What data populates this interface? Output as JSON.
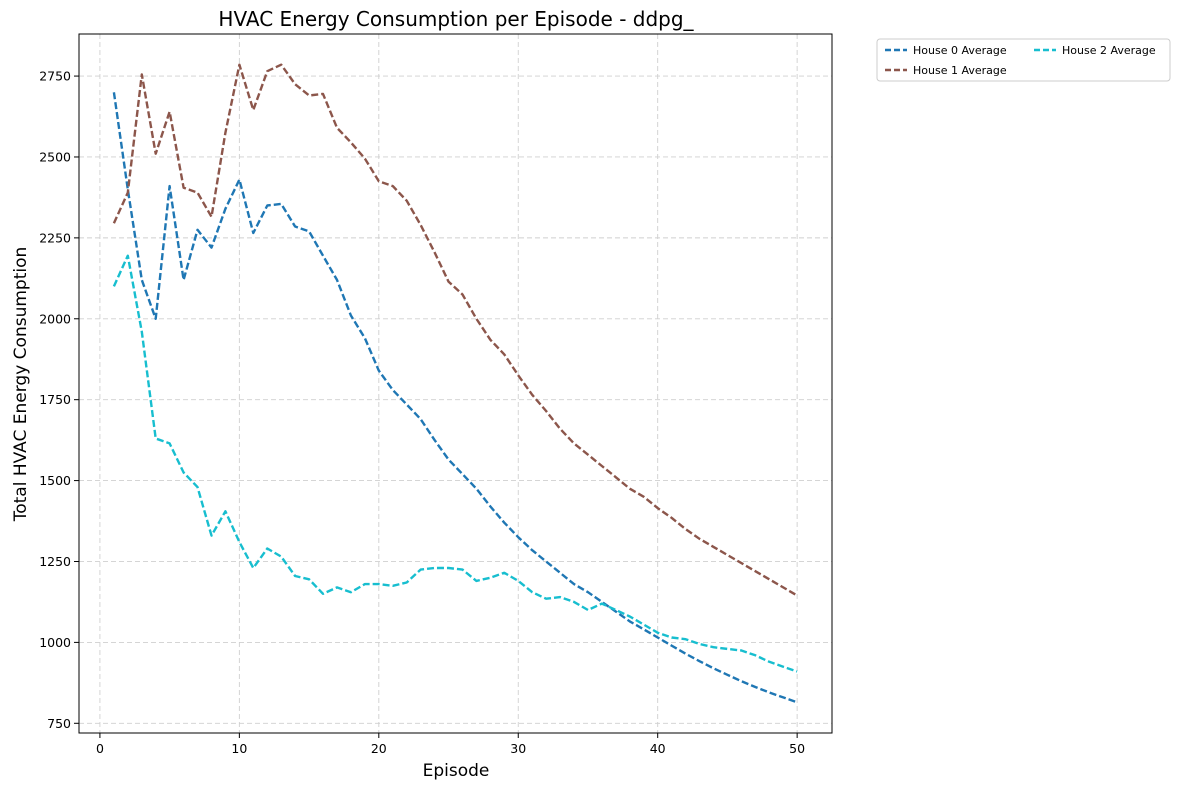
{
  "chart_data": {
    "type": "line",
    "title": "HVAC Energy Consumption per Episode - ddpg_",
    "xlabel": "Episode",
    "ylabel": "Total HVAC Energy Consumption",
    "xlim": [
      -1.5,
      52.5
    ],
    "ylim": [
      720,
      2880
    ],
    "xticks": [
      0,
      10,
      20,
      30,
      40,
      50
    ],
    "yticks": [
      750,
      1000,
      1250,
      1500,
      1750,
      2000,
      2250,
      2500,
      2750
    ],
    "grid": true,
    "legend_position": "outside-top-right",
    "x": [
      1,
      2,
      3,
      4,
      5,
      6,
      7,
      8,
      9,
      10,
      11,
      12,
      13,
      14,
      15,
      16,
      17,
      18,
      19,
      20,
      21,
      22,
      23,
      24,
      25,
      26,
      27,
      28,
      29,
      30,
      31,
      32,
      33,
      34,
      35,
      36,
      37,
      38,
      39,
      40,
      41,
      42,
      43,
      44,
      45,
      46,
      47,
      48,
      49,
      50
    ],
    "series": [
      {
        "name": "House 0 Average",
        "color": "#1f77b4",
        "values": [
          2700,
          2400,
          2120,
          2000,
          2410,
          2120,
          2275,
          2220,
          2340,
          2430,
          2265,
          2350,
          2355,
          2285,
          2270,
          2195,
          2120,
          2010,
          1940,
          1840,
          1780,
          1735,
          1690,
          1625,
          1565,
          1520,
          1475,
          1420,
          1370,
          1325,
          1285,
          1250,
          1215,
          1180,
          1155,
          1125,
          1095,
          1065,
          1040,
          1015,
          990,
          965,
          942,
          920,
          900,
          880,
          862,
          845,
          830,
          815
        ]
      },
      {
        "name": "House 1 Average",
        "color": "#8c564b",
        "values": [
          2295,
          2390,
          2755,
          2510,
          2640,
          2405,
          2390,
          2315,
          2575,
          2785,
          2645,
          2765,
          2785,
          2725,
          2690,
          2695,
          2590,
          2545,
          2495,
          2425,
          2410,
          2365,
          2290,
          2205,
          2115,
          2075,
          2000,
          1935,
          1890,
          1825,
          1765,
          1715,
          1660,
          1615,
          1580,
          1545,
          1510,
          1475,
          1450,
          1415,
          1385,
          1350,
          1320,
          1295,
          1270,
          1245,
          1220,
          1195,
          1170,
          1145
        ]
      },
      {
        "name": "House 2 Average",
        "color": "#17becf",
        "values": [
          2100,
          2195,
          1960,
          1630,
          1615,
          1525,
          1480,
          1330,
          1405,
          1310,
          1230,
          1290,
          1265,
          1205,
          1195,
          1150,
          1170,
          1155,
          1180,
          1180,
          1175,
          1185,
          1225,
          1230,
          1230,
          1225,
          1190,
          1200,
          1215,
          1190,
          1155,
          1135,
          1140,
          1125,
          1100,
          1120,
          1100,
          1080,
          1055,
          1030,
          1015,
          1010,
          995,
          985,
          980,
          975,
          960,
          940,
          925,
          910
        ]
      }
    ]
  }
}
